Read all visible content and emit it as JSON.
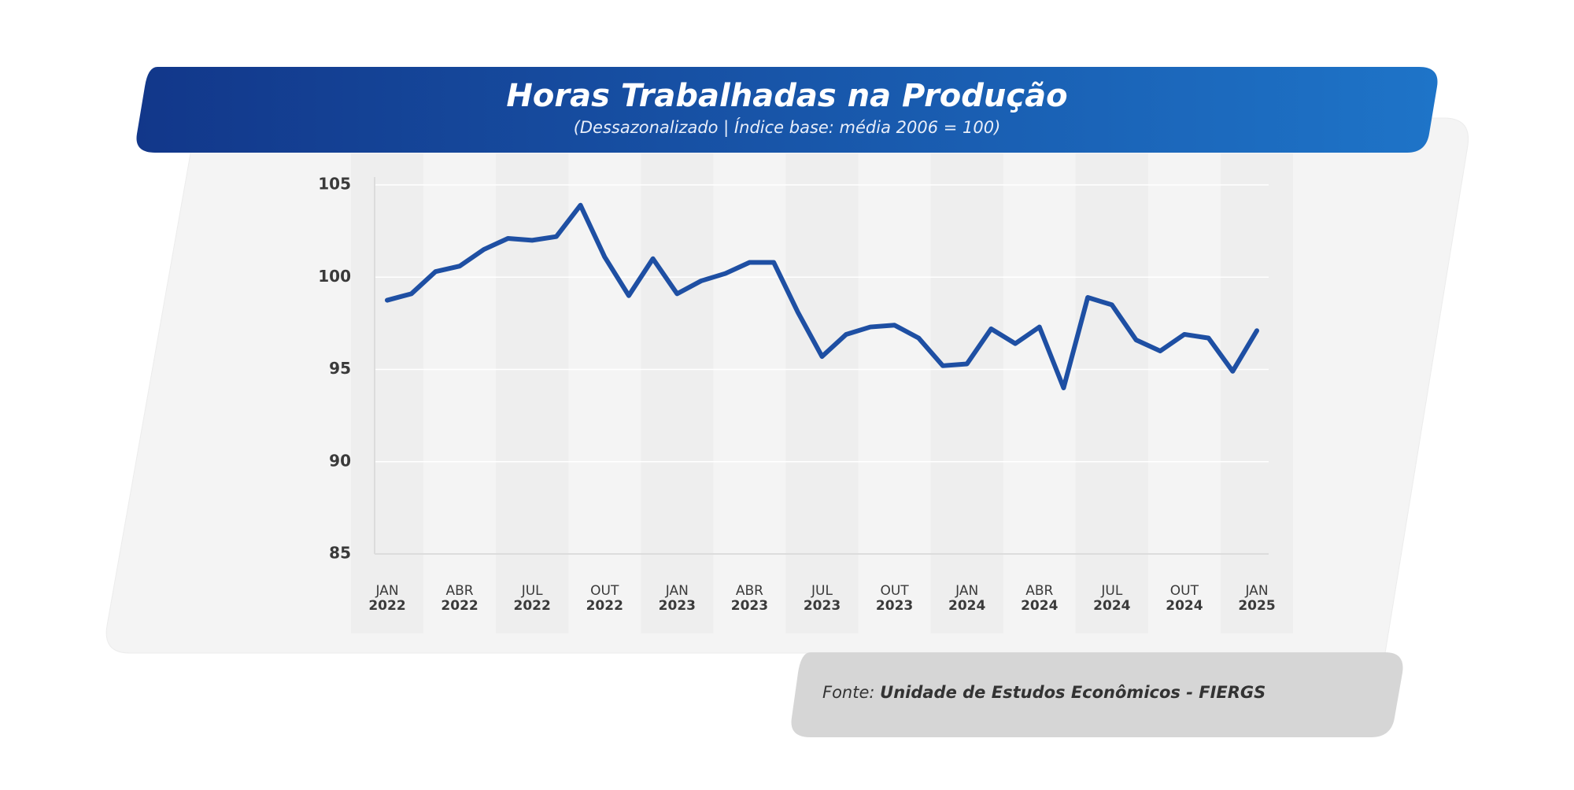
{
  "title": "Horas Trabalhadas na Produção",
  "subtitle": "(Dessazonalizado | Índice base: média 2006 = 100)",
  "source_label": "Fonte:",
  "source": "Unidade de Estudos Econômicos - FIERGS",
  "chart_data": {
    "type": "line",
    "categories": [
      "JAN 2022",
      null,
      null,
      "ABR 2022",
      null,
      null,
      "JUL 2022",
      null,
      null,
      "OUT 2022",
      null,
      null,
      "JAN 2023",
      null,
      null,
      "ABR 2023",
      null,
      null,
      "JUL 2023",
      null,
      null,
      "OUT 2023",
      null,
      null,
      "JAN 2024",
      null,
      null,
      "ABR 2024",
      null,
      null,
      "JUL 2024",
      null,
      null,
      "OUT 2024",
      null,
      null,
      "JAN 2025"
    ],
    "series": [
      {
        "name": "Horas Trabalhadas na Produção",
        "color": "#1e4fa3",
        "values": [
          98.75,
          99.1,
          100.3,
          100.6,
          101.5,
          102.1,
          102.0,
          102.2,
          103.9,
          101.1,
          99.0,
          101.0,
          99.1,
          99.8,
          100.2,
          100.8,
          100.8,
          98.1,
          95.7,
          96.9,
          97.3,
          97.4,
          96.7,
          95.2,
          95.3,
          97.2,
          96.4,
          97.3,
          94.0,
          98.9,
          98.5,
          96.6,
          96.0,
          96.9,
          96.7,
          94.9,
          97.1
        ]
      }
    ],
    "ylim": [
      85,
      105
    ],
    "yticks": [
      85,
      90,
      95,
      100,
      105
    ],
    "grid": true
  }
}
